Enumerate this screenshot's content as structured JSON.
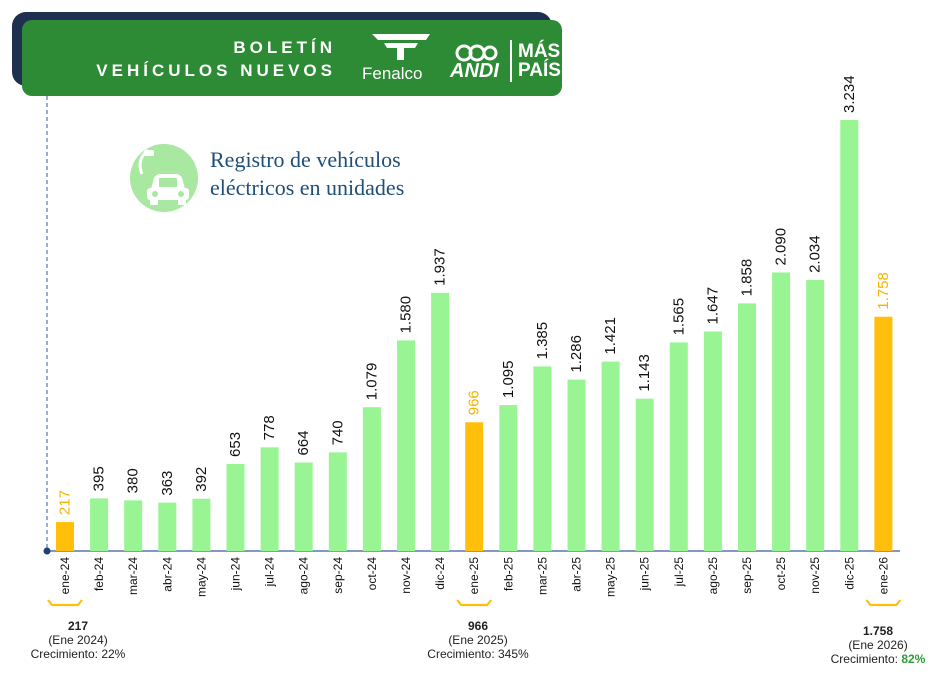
{
  "header": {
    "line1": "BOLETÍN",
    "line2": "VEHÍCULOS NUEVOS",
    "logo_fenalco": "Fenalco",
    "logo_andi": "ANDI",
    "logo_mas": "MÁS",
    "logo_pais": "PAÍS"
  },
  "colors": {
    "bar": "#99f593",
    "highlight": "#ffbf0a",
    "highlight_label": "#f4b400",
    "axis": "#3a5aa8",
    "banner": "#2e8b35",
    "growth": "#2e9c3a",
    "icon_circle": "#a8e8a0"
  },
  "chart_data": {
    "type": "bar",
    "title": "Registro de vehículos eléctricos  en unidades",
    "categories": [
      "ene-24",
      "feb-24",
      "mar-24",
      "abr-24",
      "may-24",
      "jun-24",
      "jul-24",
      "ago-24",
      "sep-24",
      "oct-24",
      "nov-24",
      "dic-24",
      "ene-25",
      "feb-25",
      "mar-25",
      "abr-25",
      "may-25",
      "jun-25",
      "jul-25",
      "ago-25",
      "sep-25",
      "oct-25",
      "nov-25",
      "dic-25",
      "ene-26"
    ],
    "values": [
      217,
      395,
      380,
      363,
      392,
      653,
      778,
      664,
      740,
      1079,
      1580,
      1937,
      966,
      1095,
      1385,
      1286,
      1421,
      1143,
      1565,
      1647,
      1858,
      2090,
      2034,
      3234,
      1758
    ],
    "value_labels": [
      "217",
      "395",
      "380",
      "363",
      "392",
      "653",
      "778",
      "664",
      "740",
      "1.079",
      "1.580",
      "1.937",
      "966",
      "1.095",
      "1.385",
      "1.286",
      "1.421",
      "1.143",
      "1.565",
      "1.647",
      "1.858",
      "2.090",
      "2.034",
      "3.234",
      "1.758"
    ],
    "highlighted": [
      "ene-24",
      "ene-25",
      "ene-26"
    ],
    "ylim": [
      0,
      3234
    ]
  },
  "annotations": [
    {
      "value": "217",
      "period": "(Ene 2024)",
      "growth_label": "Crecimiento:",
      "growth": "22%"
    },
    {
      "value": "966",
      "period": "(Ene 2025)",
      "growth_label": "Crecimiento:",
      "growth": "345%"
    },
    {
      "value": "1.758",
      "period": "(Ene 2026)",
      "growth_label": "Crecimiento:",
      "growth": "82%"
    }
  ]
}
